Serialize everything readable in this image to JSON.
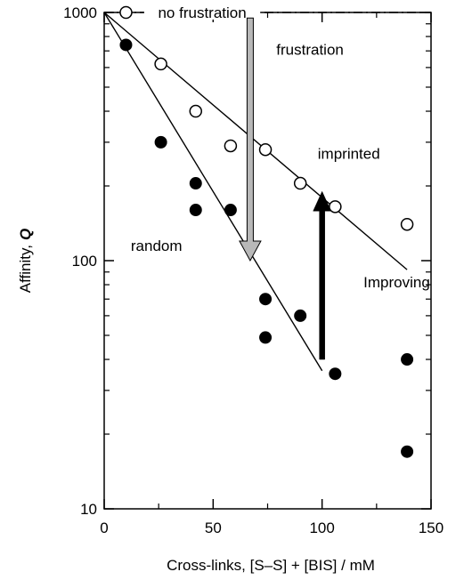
{
  "chart_data": {
    "type": "scatter",
    "xlabel": "Cross-links, [S–S] + [BIS] / mM",
    "ylabel_text": "Affinity,",
    "ylabel_symbol": "Q",
    "xlim": [
      0,
      150
    ],
    "ylim": [
      10,
      1000
    ],
    "yscale": "log",
    "grid": false,
    "x_ticks": [
      0,
      50,
      100,
      150
    ],
    "x_tick_labels": [
      "0",
      "50",
      "100",
      "150"
    ],
    "y_ticks": [
      10,
      100,
      1000
    ],
    "y_tick_labels": [
      "10",
      "100",
      "1000"
    ],
    "y_minor_ticks": [
      20,
      30,
      40,
      50,
      60,
      70,
      80,
      90,
      200,
      300,
      400,
      500,
      600,
      700,
      800,
      900
    ],
    "series": [
      {
        "name": "imprinted",
        "marker": "open-circle",
        "x": [
          10,
          26,
          42,
          58,
          74,
          90,
          106,
          139
        ],
        "y": [
          1000,
          620,
          400,
          290,
          280,
          205,
          165,
          140
        ]
      },
      {
        "name": "random",
        "marker": "filled-circle",
        "x": [
          10,
          26,
          42,
          42,
          58,
          74,
          74,
          90,
          106,
          139,
          139
        ],
        "y": [
          740,
          300,
          205,
          160,
          160,
          70,
          49,
          60,
          35,
          40,
          17
        ]
      }
    ],
    "lines": [
      {
        "name": "no-frustration",
        "style": "dash-dot",
        "x": [
          0,
          150
        ],
        "y": [
          1000,
          1000
        ]
      },
      {
        "name": "imprinted-fit",
        "style": "solid",
        "x": [
          0,
          139
        ],
        "y": [
          1000,
          92
        ]
      },
      {
        "name": "random-fit",
        "style": "solid",
        "x": [
          0,
          100
        ],
        "y": [
          1000,
          36
        ]
      }
    ],
    "arrows": [
      {
        "name": "frustration-arrow",
        "color": "#b8b8b8",
        "x": 67,
        "y_from": 950,
        "y_to": 100
      },
      {
        "name": "improving-arrow",
        "color": "#000000",
        "x": 100,
        "y_from": 40,
        "y_to": 190
      }
    ],
    "annotations": [
      {
        "name": "no-frustration-label",
        "text": "no frustration",
        "x": 45,
        "y": 1000
      },
      {
        "name": "frustration-label",
        "text": "frustration",
        "x": 79,
        "y": 710
      },
      {
        "name": "imprinted-label",
        "text": "imprinted",
        "x": 98,
        "y": 270
      },
      {
        "name": "random-label",
        "text": "random",
        "x": 24,
        "y": 115
      },
      {
        "name": "improving-label",
        "text": "Improving",
        "x": 119,
        "y": 82
      }
    ]
  }
}
